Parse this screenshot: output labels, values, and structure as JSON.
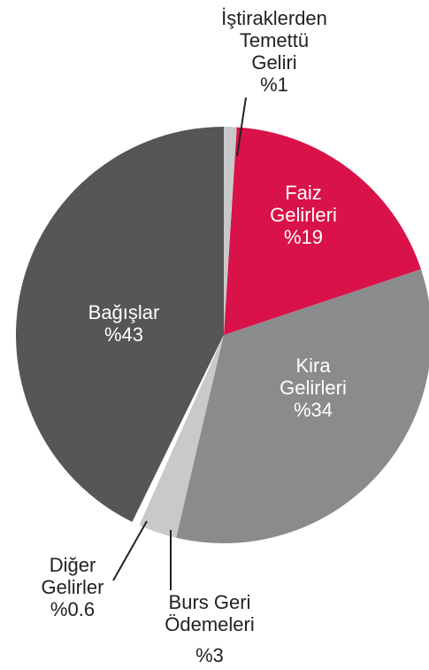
{
  "chart_data": {
    "type": "pie",
    "categories": [
      "İştiraklerden\nTemettü\nGeliri",
      "Faiz\nGelirleri",
      "Kira\nGelirleri",
      "Burs Geri\nÖdemeleri",
      "Diğer\nGelirler",
      "Bağışlar"
    ],
    "values": [
      1,
      19,
      34,
      3,
      0.6,
      43
    ],
    "value_labels": [
      "%1",
      "%19",
      "%34",
      "%3",
      "%0.6",
      "%43"
    ],
    "colors": [
      "#c8c9ca",
      "#d9124a",
      "#8a8b8d",
      "#c8c9ca",
      "#ffffff",
      "#555658"
    ]
  }
}
